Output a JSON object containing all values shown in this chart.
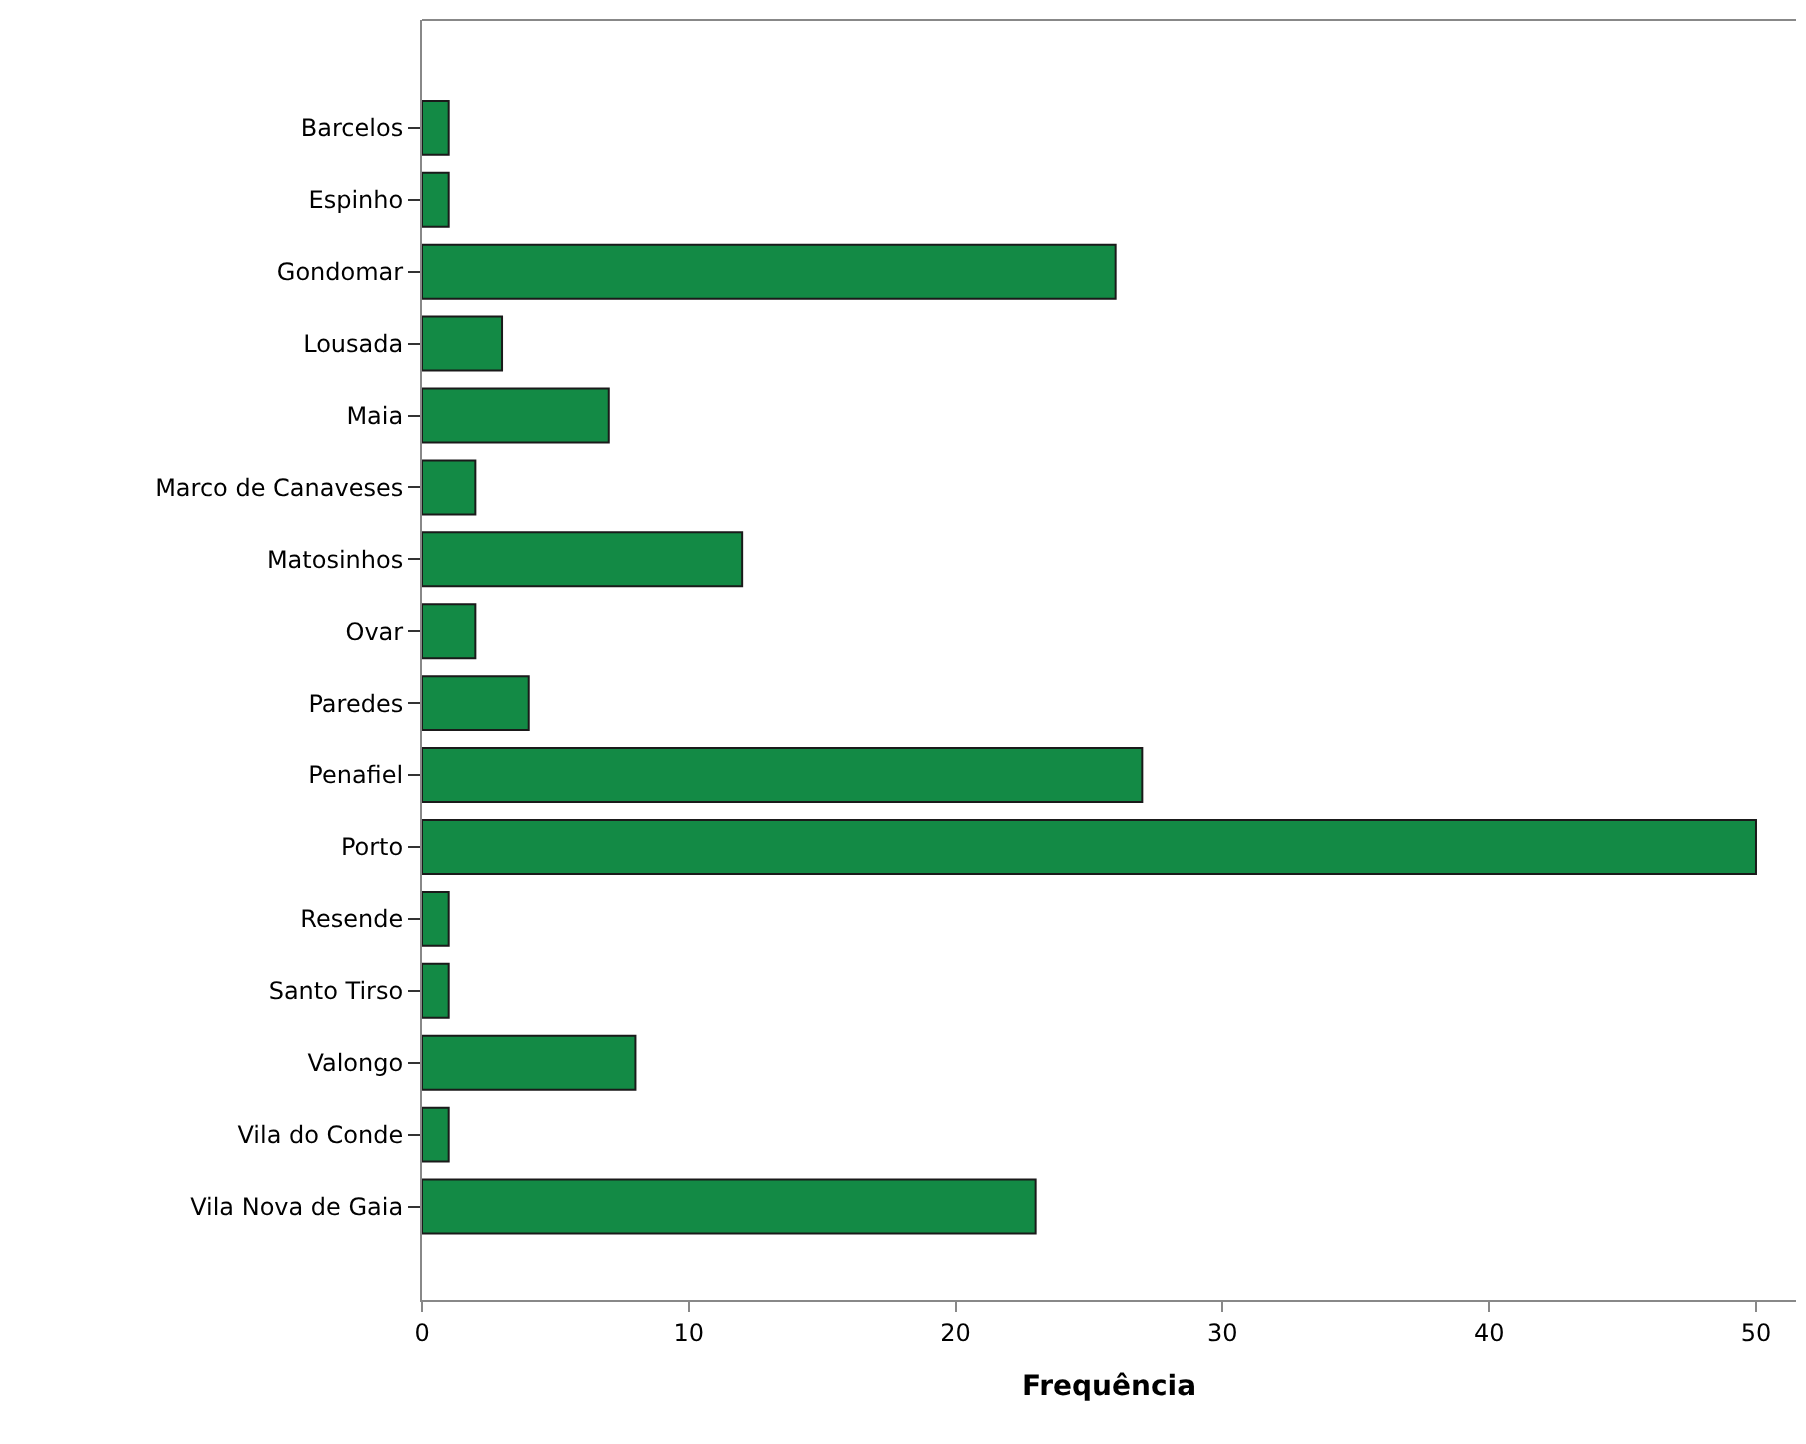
{
  "chart_data": {
    "type": "bar",
    "orientation": "horizontal",
    "xlabel": "Frequência",
    "categories": [
      "Barcelos",
      "Espinho",
      "Gondomar",
      "Lousada",
      "Maia",
      "Marco de Canaveses",
      "Matosinhos",
      "Ovar",
      "Paredes",
      "Penafiel",
      "Porto",
      "Resende",
      "Santo Tirso",
      "Valongo",
      "Vila do Conde",
      "Vila Nova de Gaia"
    ],
    "values": [
      1,
      1,
      26,
      3,
      7,
      2,
      12,
      2,
      4,
      27,
      50,
      1,
      1,
      8,
      1,
      23
    ],
    "color": "#138a45",
    "xlim": [
      0,
      51.5
    ],
    "xticks": [
      0,
      10,
      20,
      30,
      40,
      50
    ]
  }
}
